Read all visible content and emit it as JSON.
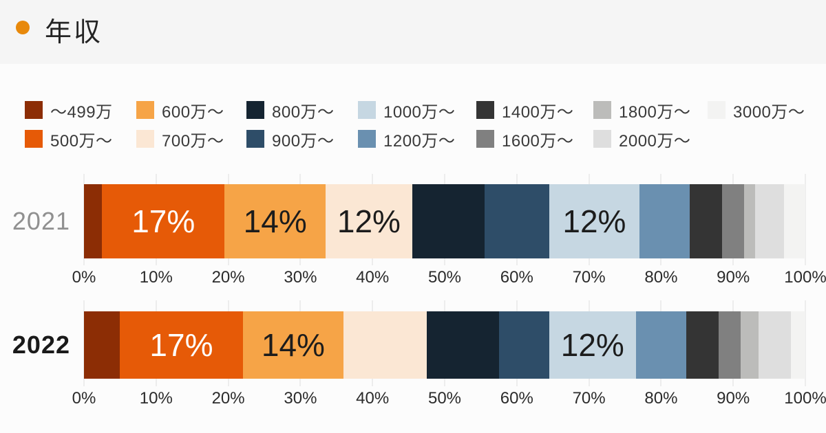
{
  "page": {
    "title": "年収",
    "background": "#FCFCFC",
    "header_background": "#F5F5F5",
    "bullet_color": "#E8890B"
  },
  "legend": {
    "items": [
      {
        "label": "〜499万",
        "color": "#8C2D05"
      },
      {
        "label": "500万〜",
        "color": "#E65A07"
      },
      {
        "label": "600万〜",
        "color": "#F6A447"
      },
      {
        "label": "700万〜",
        "color": "#FBE7D4"
      },
      {
        "label": "800万〜",
        "color": "#152431"
      },
      {
        "label": "900万〜",
        "color": "#2E4D68"
      },
      {
        "label": "1000万〜",
        "color": "#C6D7E2"
      },
      {
        "label": "1200万〜",
        "color": "#6A90B0"
      },
      {
        "label": "1400万〜",
        "color": "#343434"
      },
      {
        "label": "1600万〜",
        "color": "#808080"
      },
      {
        "label": "1800万〜",
        "color": "#BCBCBA"
      },
      {
        "label": "2000万〜",
        "color": "#DEDEDE"
      },
      {
        "label": "3000万〜",
        "color": "#F3F3F2"
      }
    ]
  },
  "chart_data": {
    "type": "bar",
    "variant": "stacked-horizontal-100percent",
    "unit": "percent",
    "title": "年収",
    "categories": [
      "〜499万",
      "500万〜",
      "600万〜",
      "700万〜",
      "800万〜",
      "900万〜",
      "1000万〜",
      "1200万〜",
      "1400万〜",
      "1600万〜",
      "1800万〜",
      "2000万〜",
      "3000万〜"
    ],
    "colors": [
      "#8C2D05",
      "#E65A07",
      "#F6A447",
      "#FBE7D4",
      "#152431",
      "#2E4D68",
      "#C6D7E2",
      "#6A90B0",
      "#343434",
      "#808080",
      "#BCBCBA",
      "#DEDEDE",
      "#F3F3F2"
    ],
    "series": [
      {
        "name": "2021",
        "name_color": "#909090",
        "name_weight": "500",
        "values": [
          2.5,
          17,
          14,
          12,
          10,
          9,
          12.5,
          7,
          4.5,
          3,
          1.5,
          4,
          3
        ],
        "data_labels": [
          null,
          "17%",
          "14%",
          "12%",
          null,
          null,
          "12%",
          null,
          null,
          null,
          null,
          null,
          null
        ],
        "data_label_colors": [
          null,
          "#FFFFFF",
          "#1C1C1C",
          "#1C1C1C",
          null,
          null,
          "#1C1C1C",
          null,
          null,
          null,
          null,
          null,
          null
        ]
      },
      {
        "name": "2022",
        "name_color": "#1A1A1A",
        "name_weight": "700",
        "values": [
          5,
          17,
          14,
          11.5,
          10,
          7,
          12,
          7,
          4.5,
          3,
          2.5,
          4.5,
          2
        ],
        "data_labels": [
          null,
          "17%",
          "14%",
          null,
          null,
          null,
          "12%",
          null,
          null,
          null,
          null,
          null,
          null
        ],
        "data_label_colors": [
          null,
          "#FFFFFF",
          "#1C1C1C",
          null,
          null,
          null,
          "#1C1C1C",
          null,
          null,
          null,
          null,
          null,
          null
        ]
      }
    ],
    "x_axis": {
      "range": [
        0,
        100
      ],
      "ticks": [
        "0%",
        "10%",
        "20%",
        "30%",
        "40%",
        "50%",
        "60%",
        "70%",
        "80%",
        "90%",
        "100%"
      ],
      "grid": true,
      "grid_color": "#EDEDED"
    },
    "legend_position": "top"
  }
}
